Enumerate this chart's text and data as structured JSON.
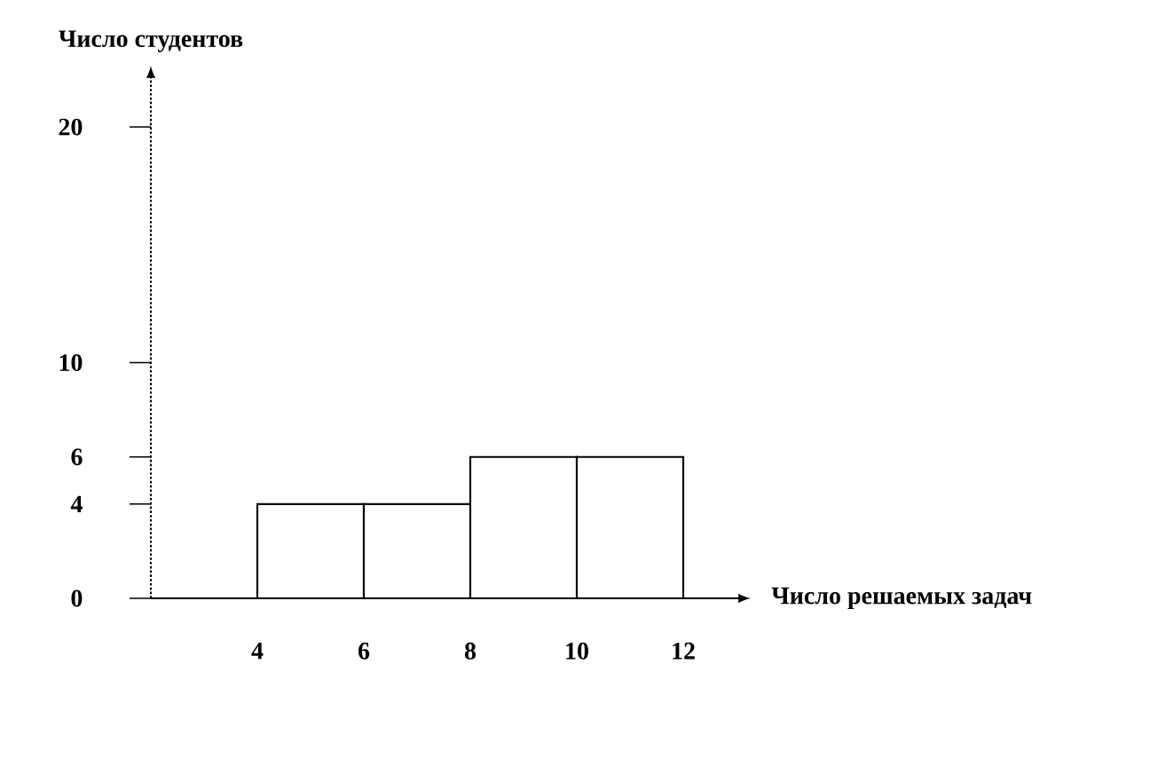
{
  "chart_data": {
    "type": "histogram",
    "xlabel": "Число решаемых  задач",
    "ylabel": "Число студентов",
    "bins": [
      4,
      6,
      8,
      10,
      12
    ],
    "values": [
      4,
      4,
      6,
      6
    ],
    "color": "#ffffff",
    "xlim": [
      2,
      13
    ],
    "ylim": [
      0,
      22
    ],
    "xticks": [
      4,
      6,
      8,
      10,
      12
    ],
    "yticks": [
      0,
      4,
      6,
      10,
      20
    ]
  }
}
